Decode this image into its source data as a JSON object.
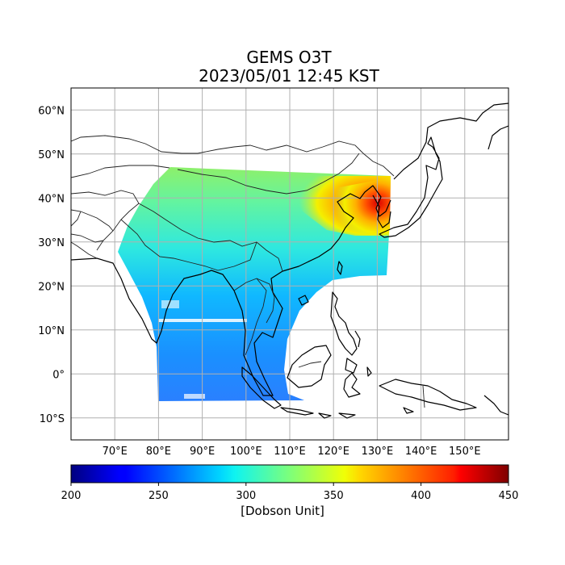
{
  "title": "GEMS O3T",
  "subtitle": "2023/05/01 12:45 KST",
  "map": {
    "lon_range": [
      60,
      160
    ],
    "lat_range": [
      -15,
      65
    ],
    "lat_ticks": [
      {
        "value": 60,
        "label": "60°N"
      },
      {
        "value": 50,
        "label": "50°N"
      },
      {
        "value": 40,
        "label": "40°N"
      },
      {
        "value": 30,
        "label": "30°N"
      },
      {
        "value": 20,
        "label": "20°N"
      },
      {
        "value": 10,
        "label": "10°N"
      },
      {
        "value": 0,
        "label": "0°"
      },
      {
        "value": -10,
        "label": "10°S"
      }
    ],
    "lon_ticks": [
      {
        "value": 70,
        "label": "70°E"
      },
      {
        "value": 80,
        "label": "80°E"
      },
      {
        "value": 90,
        "label": "90°E"
      },
      {
        "value": 100,
        "label": "100°E"
      },
      {
        "value": 110,
        "label": "110°E"
      },
      {
        "value": 120,
        "label": "120°E"
      },
      {
        "value": 130,
        "label": "130°E"
      },
      {
        "value": 140,
        "label": "140°E"
      },
      {
        "value": 150,
        "label": "150°E"
      }
    ],
    "gridlines": true,
    "grid_color": "#b0b0b0"
  },
  "colorbar": {
    "min": 200,
    "max": 450,
    "colormap": "jet",
    "ticks": [
      {
        "value": 200,
        "label": "200"
      },
      {
        "value": 250,
        "label": "250"
      },
      {
        "value": 300,
        "label": "300"
      },
      {
        "value": 350,
        "label": "350"
      },
      {
        "value": 400,
        "label": "400"
      },
      {
        "value": 450,
        "label": "450"
      }
    ],
    "label": "[Dobson Unit]"
  }
}
